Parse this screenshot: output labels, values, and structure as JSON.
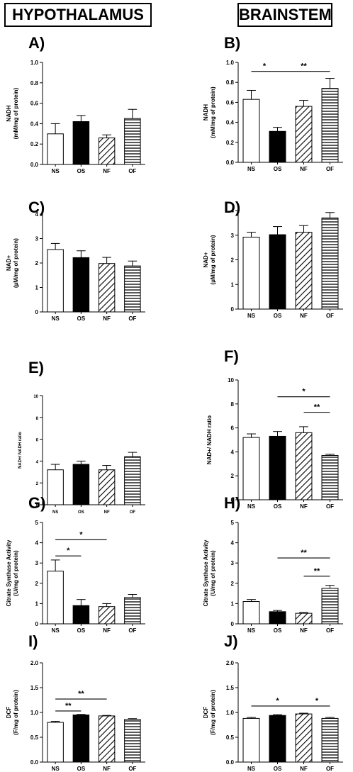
{
  "headers": {
    "left": "HYPOTHALAMUS",
    "right": "BRAINSTEM"
  },
  "colors": {
    "ink": "#000000",
    "fill_ns": "#ffffff",
    "fill_os": "#000000"
  },
  "chart_data": [
    {
      "panel": "A)",
      "type": "bar",
      "region": "HYPOTHALAMUS",
      "categories": [
        "NS",
        "OS",
        "NF",
        "OF"
      ],
      "values": [
        0.3,
        0.42,
        0.26,
        0.45
      ],
      "errors": [
        0.1,
        0.06,
        0.03,
        0.09
      ],
      "ylabel": [
        "NADH",
        "(mM/mg of protein)"
      ],
      "ylim": [
        0,
        1.0
      ],
      "yticks": [
        "0.0",
        "0.2",
        "0.4",
        "0.6",
        "0.8",
        "1.0"
      ],
      "significance": []
    },
    {
      "panel": "B)",
      "type": "bar",
      "region": "BRAINSTEM",
      "categories": [
        "NS",
        "OS",
        "NF",
        "OF"
      ],
      "values": [
        0.63,
        0.31,
        0.56,
        0.74
      ],
      "errors": [
        0.09,
        0.04,
        0.06,
        0.1
      ],
      "ylabel": [
        "NADH",
        "(mM/mg of protein)"
      ],
      "ylim": [
        0,
        1.0
      ],
      "yticks": [
        "0.0",
        "0.2",
        "0.4",
        "0.6",
        "0.8",
        "1.0"
      ],
      "significance": [
        {
          "from": 0,
          "to": 1,
          "label": "*",
          "y": 0.91
        },
        {
          "from": 1,
          "to": 3,
          "label": "**",
          "y": 0.91
        }
      ]
    },
    {
      "panel": "C)",
      "type": "bar",
      "region": "HYPOTHALAMUS",
      "categories": [
        "NS",
        "OS",
        "NF",
        "OF"
      ],
      "values": [
        2.55,
        2.22,
        1.98,
        1.88
      ],
      "errors": [
        0.25,
        0.28,
        0.25,
        0.2
      ],
      "ylabel": [
        "NAD+",
        "(µM/mg of protein)"
      ],
      "ylim": [
        0,
        4
      ],
      "yticks": [
        "0",
        "1",
        "2",
        "3",
        "4"
      ],
      "significance": []
    },
    {
      "panel": "D)",
      "type": "bar",
      "region": "BRAINSTEM",
      "categories": [
        "NS",
        "OS",
        "NF",
        "OF"
      ],
      "values": [
        2.92,
        3.02,
        3.12,
        3.7
      ],
      "errors": [
        0.2,
        0.33,
        0.27,
        0.22
      ],
      "ylabel": [
        "NAD+",
        "(µM/mg of protein)"
      ],
      "ylim": [
        0,
        4
      ],
      "yticks": [
        "0",
        "1",
        "2",
        "3",
        "4"
      ],
      "significance": []
    },
    {
      "panel": "E)",
      "type": "bar",
      "region": "HYPOTHALAMUS",
      "categories": [
        "NS",
        "OS",
        "NF",
        "OF"
      ],
      "values": [
        3.2,
        3.7,
        3.2,
        4.4
      ],
      "errors": [
        0.5,
        0.3,
        0.4,
        0.4
      ],
      "ylabel": [
        "NAD+/ NADH ratio"
      ],
      "ylim": [
        0,
        10
      ],
      "yticks": [
        "0",
        "2",
        "4",
        "6",
        "8",
        "10"
      ],
      "significance": []
    },
    {
      "panel": "F)",
      "type": "bar",
      "region": "BRAINSTEM",
      "categories": [
        "NS",
        "OS",
        "NF",
        "OF"
      ],
      "values": [
        5.2,
        5.3,
        5.6,
        3.7
      ],
      "errors": [
        0.3,
        0.4,
        0.5,
        0.1
      ],
      "ylabel": [
        "NAD+/ NADH ratio"
      ],
      "ylim": [
        0,
        10
      ],
      "yticks": [
        "0",
        "2",
        "4",
        "6",
        "8",
        "10"
      ],
      "significance": [
        {
          "from": 1,
          "to": 3,
          "label": "*",
          "y": 8.6
        },
        {
          "from": 2,
          "to": 3,
          "label": "**",
          "y": 7.3
        }
      ]
    },
    {
      "panel": "G)",
      "type": "bar",
      "region": "HYPOTHALAMUS",
      "categories": [
        "NS",
        "OS",
        "NF",
        "OF"
      ],
      "values": [
        2.6,
        0.9,
        0.85,
        1.3
      ],
      "errors": [
        0.55,
        0.3,
        0.15,
        0.15
      ],
      "ylabel": [
        "Citrate Synthase Activity",
        "(U/mg of protein)"
      ],
      "ylim": [
        0,
        5
      ],
      "yticks": [
        "0",
        "1",
        "2",
        "3",
        "4",
        "5"
      ],
      "significance": [
        {
          "from": 0,
          "to": 2,
          "label": "*",
          "y": 4.15
        },
        {
          "from": 0,
          "to": 1,
          "label": "*",
          "y": 3.35
        }
      ]
    },
    {
      "panel": "H)",
      "type": "bar",
      "region": "BRAINSTEM",
      "categories": [
        "NS",
        "OS",
        "NF",
        "OF"
      ],
      "values": [
        1.1,
        0.6,
        0.52,
        1.75
      ],
      "errors": [
        0.1,
        0.06,
        0.04,
        0.15
      ],
      "ylabel": [
        "Citrate Synthase Activity",
        "(U/mg of protein)"
      ],
      "ylim": [
        0,
        5
      ],
      "yticks": [
        "0",
        "1",
        "2",
        "3",
        "4",
        "5"
      ],
      "significance": [
        {
          "from": 1,
          "to": 3,
          "label": "**",
          "y": 3.25
        },
        {
          "from": 2,
          "to": 3,
          "label": "**",
          "y": 2.35
        }
      ]
    },
    {
      "panel": "I)",
      "type": "bar",
      "region": "HYPOTHALAMUS",
      "categories": [
        "NS",
        "OS",
        "NF",
        "OF"
      ],
      "values": [
        0.8,
        0.95,
        0.93,
        0.86
      ],
      "errors": [
        0.02,
        0.01,
        0.01,
        0.015
      ],
      "ylabel": [
        "DCF",
        "(F/mg of protein)"
      ],
      "ylim": [
        0,
        2.0
      ],
      "yticks": [
        "0.0",
        "0.5",
        "1.0",
        "1.5",
        "2.0"
      ],
      "significance": [
        {
          "from": 0,
          "to": 2,
          "label": "**",
          "y": 1.27
        },
        {
          "from": 0,
          "to": 1,
          "label": "**",
          "y": 1.03
        }
      ]
    },
    {
      "panel": "J)",
      "type": "bar",
      "region": "BRAINSTEM",
      "categories": [
        "NS",
        "OS",
        "NF",
        "OF"
      ],
      "values": [
        0.88,
        0.94,
        0.97,
        0.88
      ],
      "errors": [
        0.02,
        0.015,
        0.015,
        0.02
      ],
      "ylabel": [
        "DCF",
        "(F/mg of protein)"
      ],
      "ylim": [
        0,
        2.0
      ],
      "yticks": [
        "0.0",
        "0.5",
        "1.0",
        "1.5",
        "2.0"
      ],
      "significance": [
        {
          "from": 0,
          "to": 2,
          "label": "*",
          "y": 1.13
        },
        {
          "from": 2,
          "to": 3,
          "label": "*",
          "y": 1.13
        }
      ]
    }
  ]
}
